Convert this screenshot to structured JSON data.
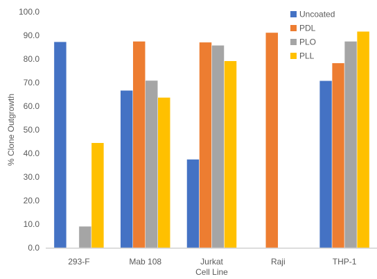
{
  "chart_data": {
    "type": "bar",
    "title": "",
    "xlabel": "Cell Line",
    "ylabel": "% Clone Outgrowth",
    "ylim": [
      0,
      100
    ],
    "ytick_step": 10,
    "ytick_labels": [
      "0.0",
      "10.0",
      "20.0",
      "30.0",
      "40.0",
      "50.0",
      "60.0",
      "70.0",
      "80.0",
      "90.0",
      "100.0"
    ],
    "grid": false,
    "legend_position": "top-right",
    "categories": [
      "293-F",
      "Mab 108",
      "Jurkat",
      "Raji",
      "THP-1"
    ],
    "series": [
      {
        "name": "Uncoated",
        "color": "#4472C4",
        "values": [
          87.3,
          66.7,
          37.5,
          null,
          70.8
        ]
      },
      {
        "name": "PDL",
        "color": "#ED7D31",
        "values": [
          null,
          87.5,
          87.1,
          91.2,
          78.3
        ]
      },
      {
        "name": "PLO",
        "color": "#A5A5A5",
        "values": [
          9.1,
          70.9,
          85.8,
          null,
          87.5
        ]
      },
      {
        "name": "PLL",
        "color": "#FFC000",
        "values": [
          44.5,
          63.7,
          79.2,
          null,
          91.7
        ]
      }
    ]
  }
}
